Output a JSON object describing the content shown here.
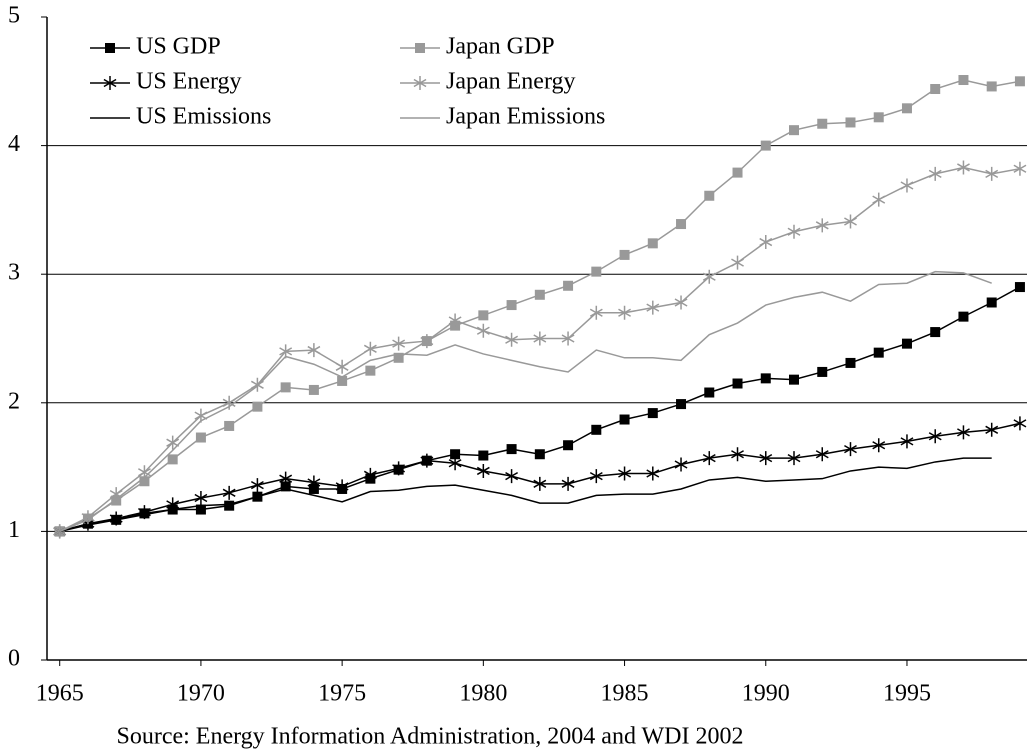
{
  "chart_data": {
    "type": "line",
    "note": "Source: Energy Information Administration, 2004 and WDI 2002",
    "x": [
      1965,
      1966,
      1967,
      1968,
      1969,
      1970,
      1971,
      1972,
      1973,
      1974,
      1975,
      1976,
      1977,
      1978,
      1979,
      1980,
      1981,
      1982,
      1983,
      1984,
      1985,
      1986,
      1987,
      1988,
      1989,
      1990,
      1991,
      1992,
      1993,
      1994,
      1995,
      1996,
      1997,
      1998,
      1999
    ],
    "series": [
      {
        "name": "US GDP",
        "color": "#000000",
        "marker": "square",
        "values": [
          1.0,
          1.06,
          1.09,
          1.14,
          1.17,
          1.17,
          1.2,
          1.27,
          1.35,
          1.33,
          1.33,
          1.41,
          1.48,
          1.55,
          1.6,
          1.59,
          1.64,
          1.6,
          1.67,
          1.79,
          1.87,
          1.92,
          1.99,
          2.08,
          2.15,
          2.19,
          2.18,
          2.24,
          2.31,
          2.39,
          2.46,
          2.55,
          2.67,
          2.78,
          2.9
        ]
      },
      {
        "name": "Japan GDP",
        "color": "#999999",
        "marker": "square",
        "values": [
          1.0,
          1.1,
          1.24,
          1.39,
          1.56,
          1.73,
          1.82,
          1.97,
          2.12,
          2.1,
          2.17,
          2.25,
          2.35,
          2.48,
          2.6,
          2.68,
          2.76,
          2.84,
          2.91,
          3.02,
          3.15,
          3.24,
          3.39,
          3.61,
          3.79,
          4.0,
          4.12,
          4.17,
          4.18,
          4.22,
          4.29,
          4.44,
          4.51,
          4.46,
          4.5
        ]
      },
      {
        "name": "US Energy",
        "color": "#000000",
        "marker": "star",
        "values": [
          1.0,
          1.06,
          1.1,
          1.15,
          1.21,
          1.26,
          1.3,
          1.36,
          1.41,
          1.38,
          1.35,
          1.44,
          1.49,
          1.55,
          1.53,
          1.47,
          1.43,
          1.37,
          1.37,
          1.43,
          1.45,
          1.45,
          1.52,
          1.57,
          1.6,
          1.57,
          1.57,
          1.6,
          1.64,
          1.67,
          1.7,
          1.74,
          1.77,
          1.79,
          1.84
        ]
      },
      {
        "name": "Japan Energy",
        "color": "#999999",
        "marker": "star",
        "values": [
          1.0,
          1.11,
          1.29,
          1.46,
          1.69,
          1.9,
          2.0,
          2.14,
          2.4,
          2.41,
          2.28,
          2.42,
          2.46,
          2.48,
          2.64,
          2.56,
          2.49,
          2.5,
          2.5,
          2.7,
          2.7,
          2.74,
          2.78,
          2.98,
          3.09,
          3.25,
          3.33,
          3.38,
          3.41,
          3.58,
          3.69,
          3.78,
          3.83,
          3.78,
          3.82
        ]
      },
      {
        "name": "US Emissions",
        "color": "#000000",
        "marker": "none",
        "values": [
          1.0,
          1.05,
          1.09,
          1.13,
          1.17,
          1.2,
          1.21,
          1.27,
          1.33,
          1.28,
          1.23,
          1.31,
          1.32,
          1.35,
          1.36,
          1.32,
          1.28,
          1.22,
          1.22,
          1.28,
          1.29,
          1.29,
          1.33,
          1.4,
          1.42,
          1.39,
          1.4,
          1.41,
          1.47,
          1.5,
          1.49,
          1.54,
          1.57,
          1.57,
          null
        ]
      },
      {
        "name": "Japan Emissions",
        "color": "#999999",
        "marker": "none",
        "values": [
          1.0,
          1.09,
          1.25,
          1.42,
          1.63,
          1.86,
          1.97,
          2.13,
          2.36,
          2.3,
          2.2,
          2.33,
          2.38,
          2.37,
          2.45,
          2.38,
          2.33,
          2.28,
          2.24,
          2.41,
          2.35,
          2.35,
          2.33,
          2.53,
          2.62,
          2.76,
          2.82,
          2.86,
          2.79,
          2.92,
          2.93,
          3.02,
          3.01,
          2.93,
          null
        ]
      }
    ],
    "xlim": [
      1964.55,
      1999.25
    ],
    "xticks": [
      1965,
      1970,
      1975,
      1980,
      1985,
      1990,
      1995
    ],
    "ylim": [
      0,
      5
    ],
    "yticks": [
      0,
      1,
      2,
      3,
      4,
      5
    ],
    "grid": true
  }
}
